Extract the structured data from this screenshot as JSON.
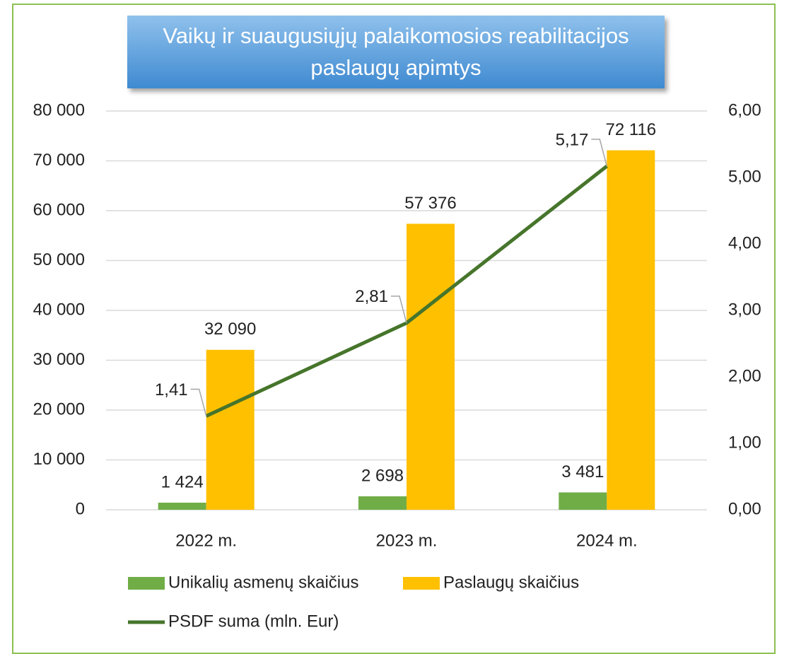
{
  "chart_data": {
    "type": "bar_line",
    "title": "Vaikų ir suaugusiųjų palaikomosios reabilitacijos paslaugų apimtys",
    "categories": [
      "2022 m.",
      "2023 m.",
      "2024 m."
    ],
    "series": [
      {
        "name": "Unikalių asmenų skaičius",
        "color": "#70ad47",
        "type": "bar",
        "values": [
          1424,
          2698,
          3481
        ],
        "value_labels": [
          "1 424",
          "2 698",
          "3 481"
        ]
      },
      {
        "name": "Paslaugų skaičius",
        "color": "#ffc000",
        "type": "bar",
        "values": [
          32090,
          57376,
          72116
        ],
        "value_labels": [
          "32 090",
          "57 376",
          "72 116"
        ]
      },
      {
        "name": "PSDF suma (mln. Eur)",
        "color": "#46752b",
        "type": "line",
        "axis": "y2",
        "values": [
          1.41,
          2.81,
          5.17
        ],
        "value_labels": [
          "1,41",
          "2,81",
          "5,17"
        ]
      }
    ],
    "ylim": [
      0,
      80000
    ],
    "yticks": [
      0,
      {
        "value": 10000,
        "label": "10 000"
      },
      {
        "value": 20000,
        "label": "20 000"
      },
      {
        "value": 30000,
        "label": "30 000"
      },
      {
        "value": 40000,
        "label": "40 000"
      },
      {
        "value": 50000,
        "label": "50 000"
      },
      {
        "value": 60000,
        "label": "60 000"
      },
      {
        "value": 70000,
        "label": "70 000"
      },
      {
        "value": 80000,
        "label": "80 000"
      }
    ],
    "y2lim": [
      0,
      6
    ],
    "y2ticks": [
      {
        "value": 0,
        "label": "0,00"
      },
      {
        "value": 1,
        "label": "1,00"
      },
      {
        "value": 2,
        "label": "2,00"
      },
      {
        "value": 3,
        "label": "3,00"
      },
      {
        "value": 4,
        "label": "4,00"
      },
      {
        "value": 5,
        "label": "5,00"
      },
      {
        "value": 6,
        "label": "6,00"
      }
    ],
    "grid": true,
    "legend": "bottom"
  }
}
